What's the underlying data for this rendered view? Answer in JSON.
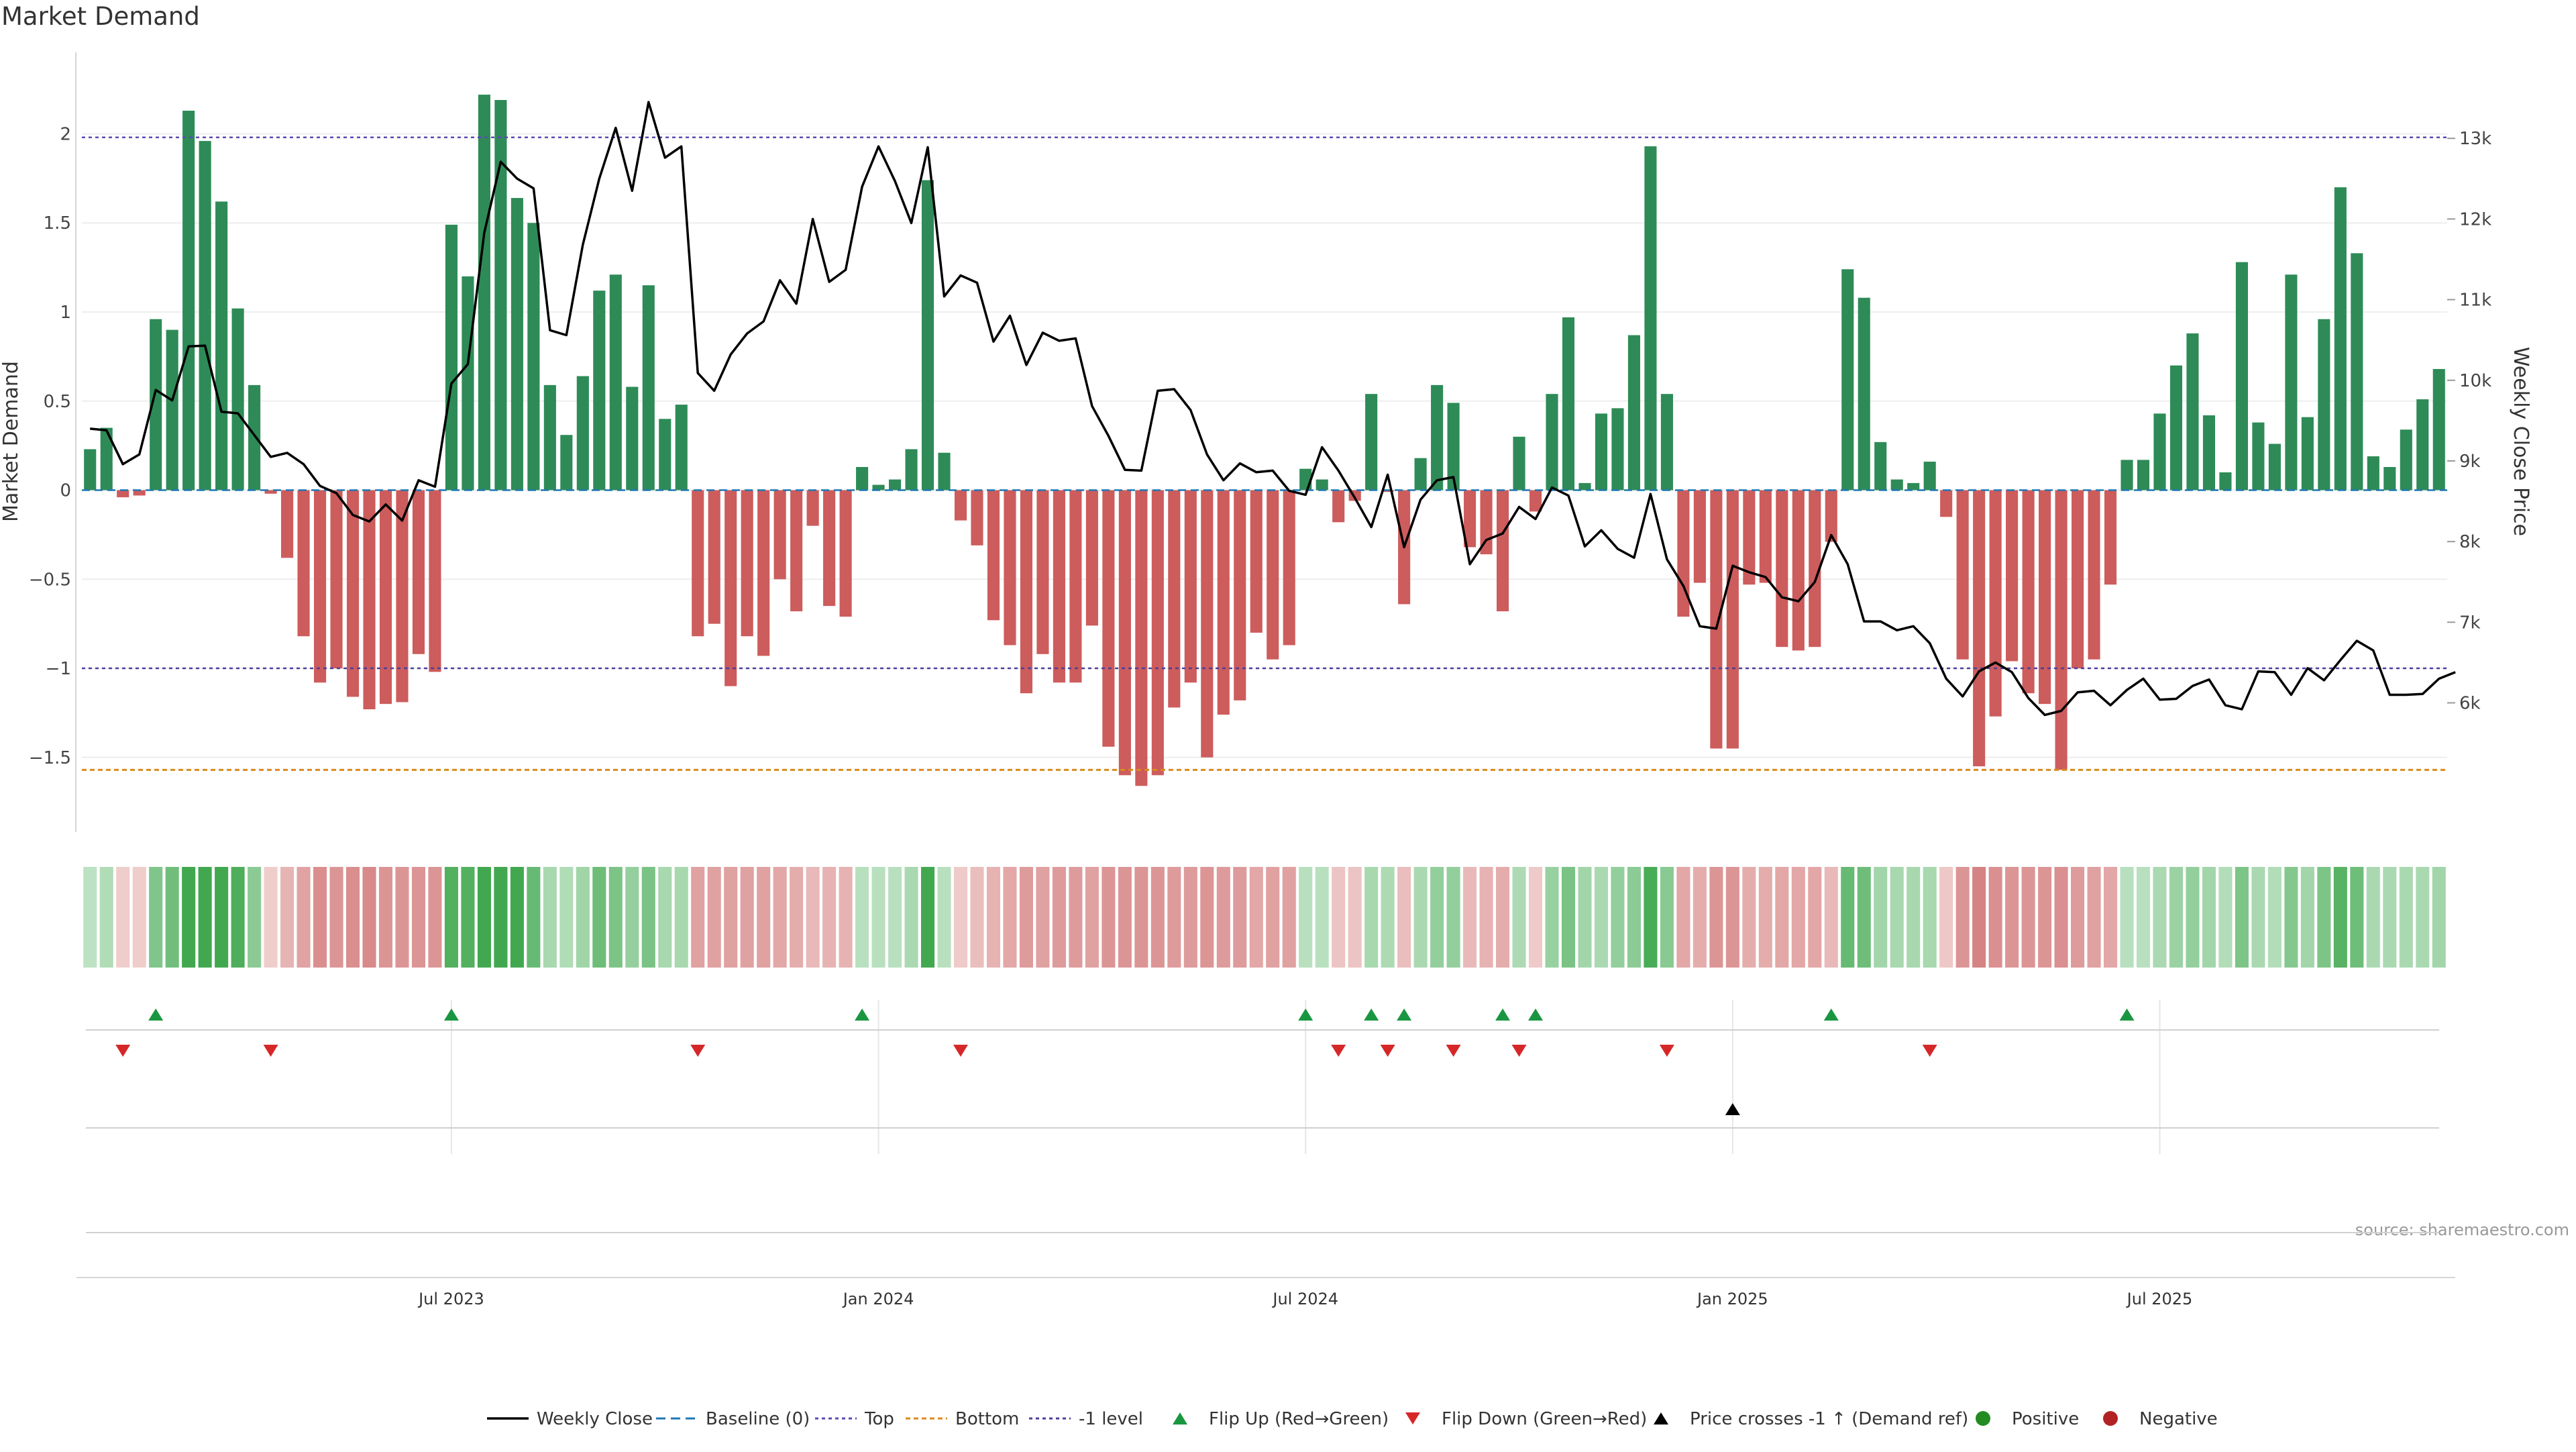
{
  "chart_data": {
    "type": "bar",
    "title": "Market Demand",
    "ylabel_left": "Market Demand",
    "ylabel_right": "Weekly Close Price",
    "source": "source: sharemaestro.com",
    "x_start": "2023-03-06",
    "x_end": "2025-10-13",
    "ylim_left": [
      -1.9,
      2.45
    ],
    "ylim_right": [
      4440,
      14050
    ],
    "y_ticks_left": [
      {
        "value": 2,
        "label": "2"
      },
      {
        "value": 1.5,
        "label": "1.5"
      },
      {
        "value": 1,
        "label": "1"
      },
      {
        "value": 0.5,
        "label": "0.5"
      },
      {
        "value": 0,
        "label": "0"
      },
      {
        "value": -0.5,
        "label": "−0.5"
      },
      {
        "value": -1,
        "label": "−1"
      },
      {
        "value": -1.5,
        "label": "−1.5"
      }
    ],
    "y_ticks_right": [
      {
        "value": 13000,
        "label": "13k"
      },
      {
        "value": 12000,
        "label": "12k"
      },
      {
        "value": 11000,
        "label": "11k"
      },
      {
        "value": 10000,
        "label": "10k"
      },
      {
        "value": 9000,
        "label": "9k"
      },
      {
        "value": 8000,
        "label": "8k"
      },
      {
        "value": 7000,
        "label": "7k"
      },
      {
        "value": 6000,
        "label": "6k"
      }
    ],
    "x_ticks": [
      {
        "week": 22,
        "label": "Jul 2023"
      },
      {
        "week": 48,
        "label": "Jan 2024"
      },
      {
        "week": 74,
        "label": "Jul 2024"
      },
      {
        "week": 100,
        "label": "Jan 2025"
      },
      {
        "week": 126,
        "label": "Jul 2025"
      }
    ],
    "levels": {
      "top": 1.98,
      "baseline": 0,
      "bottom": -1.57,
      "minus_one": -1
    },
    "demand": [
      0.23,
      0.35,
      -0.04,
      -0.03,
      0.96,
      0.9,
      2.13,
      1.96,
      1.62,
      1.02,
      0.59,
      -0.02,
      -0.38,
      -0.82,
      -1.08,
      -1.0,
      -1.16,
      -1.23,
      -1.2,
      -1.19,
      -0.92,
      -1.02,
      1.49,
      1.2,
      2.22,
      2.19,
      1.64,
      1.5,
      0.59,
      0.31,
      0.64,
      1.12,
      1.21,
      0.58,
      1.15,
      0.4,
      0.48,
      -0.82,
      -0.75,
      -1.1,
      -0.82,
      -0.93,
      -0.5,
      -0.68,
      -0.2,
      -0.65,
      -0.71,
      0.13,
      0.03,
      0.06,
      0.23,
      1.74,
      0.21,
      -0.17,
      -0.31,
      -0.73,
      -0.87,
      -1.14,
      -0.92,
      -1.08,
      -1.08,
      -0.76,
      -1.44,
      -1.6,
      -1.66,
      -1.6,
      -1.22,
      -1.08,
      -1.5,
      -1.26,
      -1.18,
      -0.8,
      -0.95,
      -0.87,
      0.12,
      0.06,
      -0.18,
      -0.06,
      0.54,
      -0.01,
      -0.64,
      0.18,
      0.59,
      0.49,
      -0.32,
      -0.36,
      -0.68,
      0.3,
      -0.12,
      0.54,
      0.97,
      0.04,
      0.43,
      0.46,
      0.87,
      1.93,
      0.54,
      -0.71,
      -0.52,
      -1.45,
      -1.45,
      -0.53,
      -0.52,
      -0.88,
      -0.9,
      -0.88,
      -0.29,
      1.24,
      1.08,
      0.27,
      0.06,
      0.04,
      0.16,
      -0.15,
      -0.95,
      -1.55,
      -1.27,
      -0.96,
      -1.14,
      -1.2,
      -1.57,
      -1.0,
      -0.95,
      -0.53,
      0.17,
      0.17,
      0.43,
      0.7,
      0.88,
      0.42,
      0.1,
      1.28,
      0.38,
      0.26,
      1.21,
      0.41,
      0.96,
      1.7,
      1.33,
      0.19,
      0.13,
      0.34,
      0.51,
      0.68
    ],
    "weekly_close": [
      9400,
      9380,
      8960,
      9080,
      9880,
      9750,
      10420,
      10430,
      9610,
      9590,
      9320,
      9050,
      9100,
      8960,
      8690,
      8600,
      8330,
      8250,
      8460,
      8260,
      8760,
      8680,
      9960,
      10200,
      11830,
      12710,
      12500,
      12380,
      10620,
      10560,
      11680,
      12500,
      13130,
      12350,
      13450,
      12760,
      12900,
      10090,
      9870,
      10320,
      10580,
      10730,
      11240,
      10950,
      12000,
      11220,
      11370,
      12400,
      12900,
      12470,
      11950,
      12890,
      11040,
      11300,
      11210,
      10480,
      10800,
      10190,
      10590,
      10490,
      10520,
      9680,
      9310,
      8890,
      8880,
      9870,
      9890,
      9630,
      9080,
      8760,
      8970,
      8860,
      8880,
      8630,
      8580,
      9170,
      8880,
      8540,
      8180,
      8830,
      7930,
      8520,
      8760,
      8800,
      7720,
      8020,
      8100,
      8430,
      8280,
      8670,
      8570,
      7940,
      8140,
      7910,
      7800,
      8590,
      7780,
      7450,
      6950,
      6920,
      7700,
      7620,
      7560,
      7310,
      7260,
      7500,
      8080,
      7720,
      7010,
      7010,
      6900,
      6950,
      6740,
      6300,
      6080,
      6390,
      6500,
      6380,
      6060,
      5850,
      5900,
      6130,
      6150,
      5970,
      6160,
      6300,
      6040,
      6050,
      6210,
      6290,
      5970,
      5920,
      6390,
      6380,
      6100,
      6430,
      6280,
      6530,
      6770,
      6650,
      6100,
      6100,
      6110,
      6300,
      6380
    ],
    "demand_strip": [
      0.17,
      0.26,
      -0.08,
      -0.08,
      0.58,
      0.68,
      1.19,
      1.24,
      1.14,
      0.91,
      0.51,
      -0.08,
      -0.29,
      -0.44,
      -0.61,
      -0.55,
      -0.61,
      -0.65,
      -0.55,
      -0.55,
      -0.55,
      -0.55,
      0.89,
      0.89,
      1.32,
      1.61,
      1.07,
      0.75,
      0.32,
      0.26,
      0.36,
      0.71,
      0.61,
      0.44,
      0.62,
      0.32,
      0.32,
      -0.45,
      -0.45,
      -0.45,
      -0.45,
      -0.45,
      -0.4,
      -0.35,
      -0.25,
      -0.3,
      -0.3,
      0.2,
      0.2,
      0.2,
      0.3,
      1.0,
      0.2,
      -0.1,
      -0.2,
      -0.3,
      -0.4,
      -0.5,
      -0.45,
      -0.5,
      -0.5,
      -0.45,
      -0.55,
      -0.55,
      -0.55,
      -0.55,
      -0.5,
      -0.5,
      -0.55,
      -0.5,
      -0.5,
      -0.4,
      -0.45,
      -0.45,
      0.2,
      0.2,
      -0.15,
      -0.15,
      0.32,
      0.28,
      -0.2,
      0.3,
      0.45,
      0.45,
      -0.25,
      -0.3,
      -0.35,
      0.28,
      -0.1,
      0.42,
      0.62,
      0.35,
      0.3,
      0.45,
      0.5,
      0.95,
      0.52,
      -0.4,
      -0.35,
      -0.55,
      -0.55,
      -0.35,
      -0.35,
      -0.4,
      -0.4,
      -0.4,
      -0.25,
      0.75,
      0.7,
      0.35,
      0.32,
      0.32,
      0.32,
      -0.12,
      -0.55,
      -0.7,
      -0.6,
      -0.55,
      -0.55,
      -0.55,
      -0.6,
      -0.5,
      -0.45,
      -0.4,
      0.2,
      0.2,
      0.3,
      0.4,
      0.45,
      0.35,
      0.25,
      0.6,
      0.3,
      0.25,
      0.55,
      0.35,
      0.6,
      0.85,
      0.7,
      0.3,
      0.3,
      0.3,
      0.3,
      0.35
    ],
    "flip_up_weeks": [
      4,
      22,
      47,
      74,
      78,
      80,
      86,
      88,
      106,
      124
    ],
    "flip_down_weeks": [
      2,
      11,
      37,
      53,
      76,
      79,
      83,
      87,
      96,
      112
    ],
    "demand_ref_cross_weeks": [
      100
    ],
    "series_colors": {
      "positive": "#2e8b57",
      "negative": "#cd5c5c",
      "close": "#000000",
      "top": "#5b4bb0",
      "bottom": "#d98a1e",
      "minus_one": "#4a3f9c",
      "baseline": "#1f77b4",
      "flip_up": "#1a9641",
      "flip_down": "#d62728",
      "cross": "#000000",
      "positive_dot": "#228b22",
      "negative_dot": "#b22222"
    },
    "legend": [
      {
        "key": "close",
        "label": "Weekly Close"
      },
      {
        "key": "baseline",
        "label": "Baseline (0)"
      },
      {
        "key": "top",
        "label": "Top"
      },
      {
        "key": "bottom",
        "label": "Bottom"
      },
      {
        "key": "minus_one",
        "label": "-1 level"
      },
      {
        "key": "flip_up",
        "label": "Flip Up (Red→Green)"
      },
      {
        "key": "flip_down",
        "label": "Flip Down (Green→Red)"
      },
      {
        "key": "cross",
        "label": "Price crosses -1 ↑ (Demand ref)"
      },
      {
        "key": "positive_dot",
        "label": "Positive"
      },
      {
        "key": "negative_dot",
        "label": "Negative"
      }
    ]
  }
}
